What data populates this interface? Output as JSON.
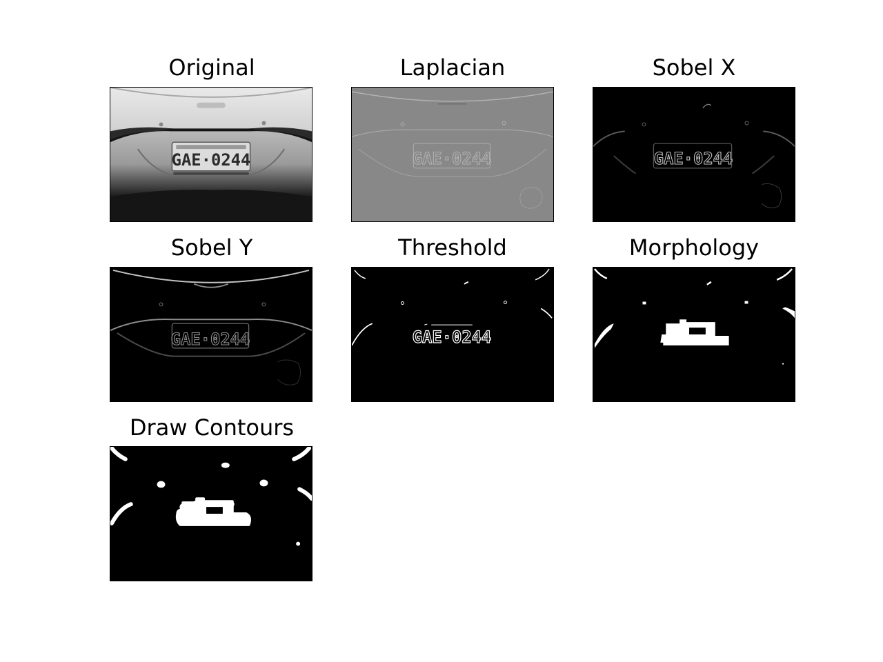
{
  "figure": {
    "panels": [
      {
        "id": "original",
        "title": "Original",
        "plate_text": "GAE·0244"
      },
      {
        "id": "laplacian",
        "title": "Laplacian",
        "plate_text": "GAE·0244"
      },
      {
        "id": "sobel-x",
        "title": "Sobel X",
        "plate_text": "GAE·0244"
      },
      {
        "id": "sobel-y",
        "title": "Sobel Y",
        "plate_text": "GAE·0244"
      },
      {
        "id": "threshold",
        "title": "Threshold",
        "plate_text": "GAE·0244"
      },
      {
        "id": "morphology",
        "title": "Morphology"
      },
      {
        "id": "draw-contours",
        "title": "Draw Contours"
      }
    ]
  }
}
